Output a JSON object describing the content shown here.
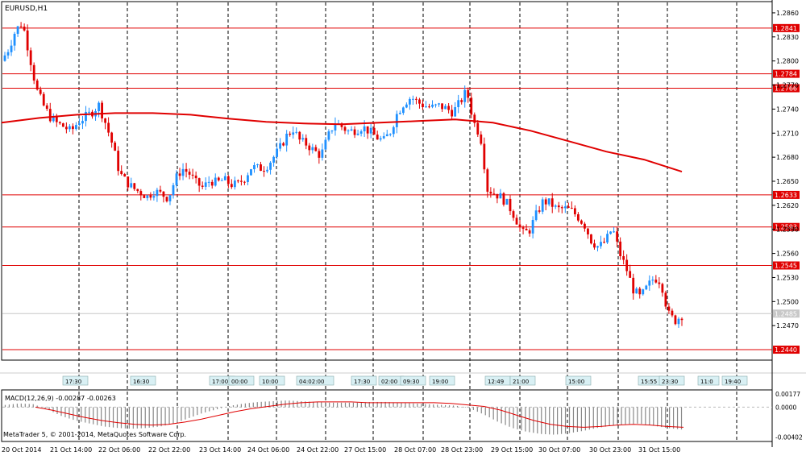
{
  "chart_data": {
    "type": "candlestick",
    "title": "EURUSD,H1",
    "time_labels": [
      "20 Oct 2014",
      "21 Oct 14:00",
      "22 Oct 06:00",
      "22 Oct 22:00",
      "23 Oct 14:00",
      "24 Oct 06:00",
      "24 Oct 22:00",
      "27 Oct 15:00",
      "28 Oct 07:00",
      "28 Oct 23:00",
      "29 Oct 15:00",
      "30 Oct 07:00",
      "30 Oct 23:00",
      "31 Oct 15:00"
    ],
    "price_ticks": [
      "1.2860",
      "1.2830",
      "1.2800",
      "1.2770",
      "1.2740",
      "1.2710",
      "1.2680",
      "1.2650",
      "1.2620",
      "1.2590",
      "1.2560",
      "1.2530",
      "1.2500",
      "1.2470"
    ],
    "ylim": [
      1.2428,
      1.2873
    ],
    "levels": [
      {
        "value": 1.2841,
        "label": "1.2841"
      },
      {
        "value": 1.2784,
        "label": "1.2784"
      },
      {
        "value": 1.2766,
        "label": "1.2766"
      },
      {
        "value": 1.2633,
        "label": "1.2633"
      },
      {
        "value": 1.2593,
        "label": "1.2593"
      },
      {
        "value": 1.2545,
        "label": "1.2545"
      },
      {
        "value": 1.244,
        "label": "1.2440"
      }
    ],
    "current_price": {
      "value": 1.2485,
      "label": "1.2485"
    },
    "price_series": [
      1.28,
      1.2815,
      1.2838,
      1.2848,
      1.2808,
      1.2765,
      1.2745,
      1.273,
      1.2722,
      1.2718,
      1.2712,
      1.2724,
      1.273,
      1.2736,
      1.2745,
      1.2722,
      1.2695,
      1.266,
      1.2649,
      1.2641,
      1.2636,
      1.2631,
      1.2638,
      1.2634,
      1.2629,
      1.2652,
      1.2666,
      1.266,
      1.2648,
      1.2642,
      1.2651,
      1.2648,
      1.2652,
      1.2646,
      1.2646,
      1.2654,
      1.2668,
      1.2666,
      1.2667,
      1.2678,
      1.269,
      1.2706,
      1.2715,
      1.27,
      1.2696,
      1.2688,
      1.2682,
      1.2705,
      1.2724,
      1.2718,
      1.2712,
      1.2714,
      1.2718,
      1.2712,
      1.2705,
      1.27,
      1.2712,
      1.2735,
      1.2748,
      1.2755,
      1.2748,
      1.2744,
      1.2742,
      1.2744,
      1.2741,
      1.2736,
      1.2748,
      1.2763,
      1.2724,
      1.2706,
      1.264,
      1.2635,
      1.263,
      1.262,
      1.2605,
      1.2585,
      1.2588,
      1.2608,
      1.2625,
      1.2623,
      1.2615,
      1.2616,
      1.2614,
      1.2606,
      1.2595,
      1.2575,
      1.2568,
      1.2575,
      1.2592,
      1.2561,
      1.2541,
      1.2515,
      1.2505,
      1.2518,
      1.253,
      1.2525,
      1.2485,
      1.2476,
      1.2483
    ],
    "moving_average": [
      1.2723,
      1.2729,
      1.2733,
      1.2735,
      1.2735,
      1.2733,
      1.2728,
      1.2724,
      1.2722,
      1.2721,
      1.2723,
      1.2725,
      1.2727,
      1.2723,
      1.2713,
      1.27,
      1.2687,
      1.2677,
      1.2662
    ],
    "indicator": {
      "label": "MACD(12,26,9) -0.00287 -0.00263",
      "ticks": [
        "0.00177",
        "0.0000",
        "-0.00402"
      ],
      "ylim": [
        -0.0045,
        0.0021
      ],
      "histogram": [
        0.0003,
        0.0005,
        0.0004,
        -0.0003,
        -0.0012,
        -0.0018,
        -0.0022,
        -0.0026,
        -0.0028,
        -0.0029,
        -0.0028,
        -0.0026,
        -0.0022,
        -0.0015,
        -0.0008,
        -0.0003,
        0.0002,
        0.0005,
        0.0007,
        0.0008,
        0.0009,
        0.0008,
        0.0007,
        0.0006,
        0.0006,
        0.0006,
        0.0007,
        0.0007,
        0.0006,
        0.0005,
        0.0004,
        0.0003,
        0.0002,
        -0.0002,
        -0.001,
        -0.002,
        -0.0028,
        -0.0033,
        -0.0036,
        -0.0037,
        -0.0035,
        -0.0032,
        -0.0028,
        -0.0025,
        -0.0023,
        -0.0022,
        -0.0025,
        -0.0028,
        -0.003
      ],
      "signal": [
        0.0,
        -0.0004,
        -0.0009,
        -0.0014,
        -0.0018,
        -0.0021,
        -0.0023,
        -0.0024,
        -0.0023,
        -0.002,
        -0.0016,
        -0.0011,
        -0.0006,
        -0.0002,
        0.0001,
        0.0004,
        0.0006,
        0.0007,
        0.0007,
        0.0007,
        0.0006,
        0.0006,
        0.0006,
        0.0006,
        0.0006,
        0.0005,
        0.0003,
        0.0001,
        -0.0004,
        -0.0011,
        -0.0018,
        -0.0023,
        -0.0026,
        -0.0027,
        -0.0026,
        -0.0024,
        -0.0023,
        -0.0024,
        -0.0026,
        -0.0027
      ]
    },
    "session_labels": [
      "17:30",
      "16:30",
      "17:00",
      "00:00",
      "10:00",
      "04:02:00",
      "17:30",
      "02:00",
      "09:30",
      "19:00",
      "12:49",
      "21:00",
      "15:00",
      "15:55",
      "23:30",
      "11:0",
      "19:40"
    ],
    "footer": "MetaTrader 5, © 2001-2014, MetaQuotes Software Corp.",
    "colors": {
      "up": "#1e90ff",
      "down": "#e00000",
      "level": "#e00000",
      "ma": "#e00000",
      "grid": "#000000",
      "histogram": "#888888",
      "signal": "#e00000"
    }
  }
}
